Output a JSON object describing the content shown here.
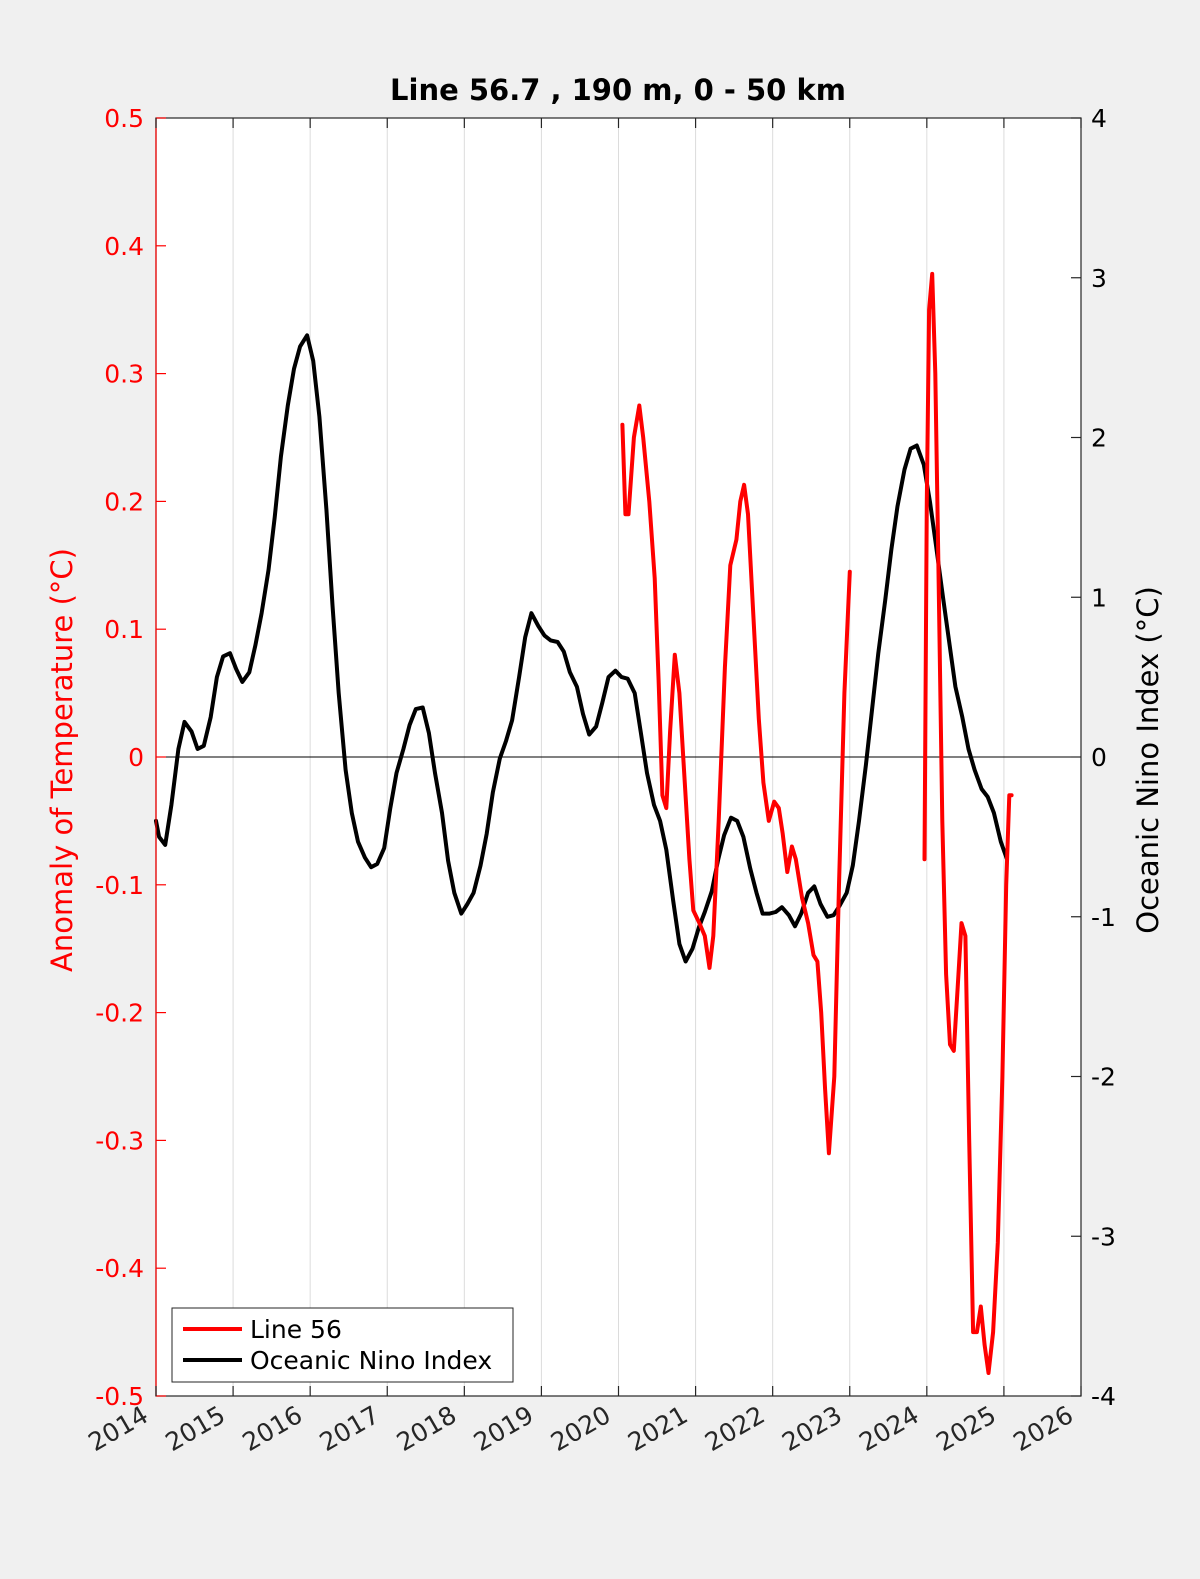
{
  "chart_data": {
    "type": "line",
    "title": "Line 56.7 , 190 m, 0 - 50 km",
    "xlim": [
      2014,
      2026
    ],
    "xticks": [
      "2014",
      "2015",
      "2016",
      "2017",
      "2018",
      "2019",
      "2020",
      "2021",
      "2022",
      "2023",
      "2024",
      "2025",
      "2026"
    ],
    "grid": "vertical",
    "legend_position": "bottom-left",
    "y_left": {
      "label": "Anomaly of Temperature (°C)",
      "color": "#ff0000",
      "ylim": [
        -0.5,
        0.5
      ],
      "ticks": [
        "0.5",
        "0.4",
        "0.3",
        "0.2",
        "0.1",
        "0",
        "-0.1",
        "-0.2",
        "-0.3",
        "-0.4",
        "-0.5"
      ]
    },
    "y_right": {
      "label": "Oceanic Nino Index (°C)",
      "color": "#000000",
      "ylim": [
        -4,
        4
      ],
      "ticks": [
        "4",
        "3",
        "2",
        "1",
        "0",
        "-1",
        "-2",
        "-3",
        "-4"
      ]
    },
    "zero_line": 0,
    "series": [
      {
        "name": "Line 56",
        "axis": "left",
        "color": "#ff0000",
        "segments": [
          [
            [
              2020.05,
              0.26
            ],
            [
              2020.09,
              0.19
            ],
            [
              2020.13,
              0.19
            ],
            [
              2020.2,
              0.25
            ],
            [
              2020.27,
              0.275
            ],
            [
              2020.32,
              0.25
            ],
            [
              2020.4,
              0.2
            ],
            [
              2020.47,
              0.14
            ],
            [
              2020.52,
              0.06
            ],
            [
              2020.57,
              -0.03
            ],
            [
              2020.62,
              -0.04
            ],
            [
              2020.67,
              0.02
            ],
            [
              2020.73,
              0.08
            ],
            [
              2020.79,
              0.05
            ],
            [
              2020.85,
              -0.01
            ],
            [
              2020.92,
              -0.08
            ],
            [
              2020.97,
              -0.12
            ],
            [
              2021.05,
              -0.13
            ],
            [
              2021.12,
              -0.14
            ],
            [
              2021.18,
              -0.165
            ],
            [
              2021.23,
              -0.14
            ],
            [
              2021.3,
              -0.05
            ],
            [
              2021.38,
              0.07
            ],
            [
              2021.45,
              0.15
            ],
            [
              2021.53,
              0.17
            ],
            [
              2021.58,
              0.2
            ],
            [
              2021.63,
              0.213
            ],
            [
              2021.68,
              0.19
            ],
            [
              2021.75,
              0.11
            ],
            [
              2021.82,
              0.03
            ],
            [
              2021.88,
              -0.02
            ],
            [
              2021.95,
              -0.05
            ],
            [
              2022.02,
              -0.035
            ],
            [
              2022.08,
              -0.04
            ],
            [
              2022.13,
              -0.06
            ],
            [
              2022.19,
              -0.09
            ],
            [
              2022.25,
              -0.07
            ],
            [
              2022.3,
              -0.08
            ],
            [
              2022.38,
              -0.11
            ],
            [
              2022.46,
              -0.13
            ],
            [
              2022.53,
              -0.155
            ],
            [
              2022.58,
              -0.16
            ],
            [
              2022.63,
              -0.2
            ],
            [
              2022.68,
              -0.26
            ],
            [
              2022.73,
              -0.31
            ],
            [
              2022.8,
              -0.25
            ],
            [
              2022.86,
              -0.1
            ],
            [
              2022.93,
              0.05
            ],
            [
              2023.0,
              0.145
            ]
          ],
          [
            [
              2023.97,
              -0.08
            ],
            [
              2024.0,
              0.2
            ],
            [
              2024.03,
              0.35
            ],
            [
              2024.07,
              0.378
            ],
            [
              2024.11,
              0.3
            ],
            [
              2024.15,
              0.15
            ],
            [
              2024.2,
              -0.05
            ],
            [
              2024.25,
              -0.17
            ],
            [
              2024.3,
              -0.225
            ],
            [
              2024.35,
              -0.23
            ],
            [
              2024.4,
              -0.18
            ],
            [
              2024.45,
              -0.13
            ],
            [
              2024.5,
              -0.14
            ],
            [
              2024.55,
              -0.3
            ],
            [
              2024.6,
              -0.45
            ],
            [
              2024.65,
              -0.45
            ],
            [
              2024.7,
              -0.43
            ],
            [
              2024.75,
              -0.46
            ],
            [
              2024.8,
              -0.482
            ],
            [
              2024.86,
              -0.45
            ],
            [
              2024.92,
              -0.38
            ],
            [
              2024.98,
              -0.25
            ],
            [
              2025.03,
              -0.1
            ],
            [
              2025.07,
              -0.03
            ],
            [
              2025.1,
              -0.03
            ]
          ]
        ]
      },
      {
        "name": "Oceanic Nino Index",
        "axis": "right",
        "color": "#000000",
        "segments": [
          [
            [
              2014.0,
              -0.4
            ],
            [
              2014.04,
              -0.5
            ],
            [
              2014.12,
              -0.55
            ],
            [
              2014.2,
              -0.3
            ],
            [
              2014.29,
              0.05
            ],
            [
              2014.37,
              0.22
            ],
            [
              2014.46,
              0.16
            ],
            [
              2014.54,
              0.05
            ],
            [
              2014.62,
              0.07
            ],
            [
              2014.71,
              0.25
            ],
            [
              2014.79,
              0.5
            ],
            [
              2014.87,
              0.63
            ],
            [
              2014.96,
              0.65
            ],
            [
              2015.04,
              0.55
            ],
            [
              2015.12,
              0.47
            ],
            [
              2015.21,
              0.53
            ],
            [
              2015.29,
              0.7
            ],
            [
              2015.37,
              0.9
            ],
            [
              2015.46,
              1.17
            ],
            [
              2015.54,
              1.5
            ],
            [
              2015.62,
              1.88
            ],
            [
              2015.71,
              2.2
            ],
            [
              2015.79,
              2.43
            ],
            [
              2015.87,
              2.57
            ],
            [
              2015.96,
              2.64
            ],
            [
              2016.04,
              2.48
            ],
            [
              2016.12,
              2.13
            ],
            [
              2016.21,
              1.55
            ],
            [
              2016.29,
              0.95
            ],
            [
              2016.37,
              0.4
            ],
            [
              2016.46,
              -0.08
            ],
            [
              2016.54,
              -0.35
            ],
            [
              2016.62,
              -0.53
            ],
            [
              2016.71,
              -0.63
            ],
            [
              2016.79,
              -0.69
            ],
            [
              2016.87,
              -0.67
            ],
            [
              2016.96,
              -0.57
            ],
            [
              2017.04,
              -0.32
            ],
            [
              2017.12,
              -0.1
            ],
            [
              2017.21,
              0.05
            ],
            [
              2017.29,
              0.2
            ],
            [
              2017.37,
              0.3
            ],
            [
              2017.46,
              0.31
            ],
            [
              2017.54,
              0.15
            ],
            [
              2017.62,
              -0.1
            ],
            [
              2017.71,
              -0.35
            ],
            [
              2017.79,
              -0.65
            ],
            [
              2017.87,
              -0.85
            ],
            [
              2017.96,
              -0.98
            ],
            [
              2018.04,
              -0.92
            ],
            [
              2018.12,
              -0.85
            ],
            [
              2018.21,
              -0.68
            ],
            [
              2018.29,
              -0.48
            ],
            [
              2018.37,
              -0.22
            ],
            [
              2018.46,
              -0.01
            ],
            [
              2018.54,
              0.1
            ],
            [
              2018.62,
              0.23
            ],
            [
              2018.71,
              0.5
            ],
            [
              2018.79,
              0.75
            ],
            [
              2018.87,
              0.9
            ],
            [
              2018.96,
              0.82
            ],
            [
              2019.04,
              0.76
            ],
            [
              2019.12,
              0.73
            ],
            [
              2019.21,
              0.72
            ],
            [
              2019.29,
              0.66
            ],
            [
              2019.37,
              0.53
            ],
            [
              2019.46,
              0.44
            ],
            [
              2019.54,
              0.27
            ],
            [
              2019.62,
              0.14
            ],
            [
              2019.71,
              0.19
            ],
            [
              2019.79,
              0.34
            ],
            [
              2019.87,
              0.5
            ],
            [
              2019.96,
              0.54
            ],
            [
              2020.04,
              0.5
            ],
            [
              2020.12,
              0.49
            ],
            [
              2020.21,
              0.4
            ],
            [
              2020.29,
              0.15
            ],
            [
              2020.37,
              -0.1
            ],
            [
              2020.46,
              -0.3
            ],
            [
              2020.54,
              -0.4
            ],
            [
              2020.62,
              -0.58
            ],
            [
              2020.71,
              -0.9
            ],
            [
              2020.79,
              -1.17
            ],
            [
              2020.87,
              -1.28
            ],
            [
              2020.96,
              -1.2
            ],
            [
              2021.04,
              -1.07
            ],
            [
              2021.12,
              -0.97
            ],
            [
              2021.21,
              -0.84
            ],
            [
              2021.29,
              -0.65
            ],
            [
              2021.37,
              -0.49
            ],
            [
              2021.46,
              -0.38
            ],
            [
              2021.54,
              -0.4
            ],
            [
              2021.62,
              -0.5
            ],
            [
              2021.71,
              -0.7
            ],
            [
              2021.79,
              -0.85
            ],
            [
              2021.87,
              -0.98
            ],
            [
              2021.96,
              -0.98
            ],
            [
              2022.04,
              -0.97
            ],
            [
              2022.12,
              -0.94
            ],
            [
              2022.21,
              -0.99
            ],
            [
              2022.29,
              -1.06
            ],
            [
              2022.37,
              -0.98
            ],
            [
              2022.46,
              -0.85
            ],
            [
              2022.54,
              -0.81
            ],
            [
              2022.62,
              -0.92
            ],
            [
              2022.71,
              -1.0
            ],
            [
              2022.79,
              -0.99
            ],
            [
              2022.87,
              -0.93
            ],
            [
              2022.96,
              -0.85
            ],
            [
              2023.04,
              -0.68
            ],
            [
              2023.12,
              -0.4
            ],
            [
              2023.21,
              -0.05
            ],
            [
              2023.29,
              0.3
            ],
            [
              2023.37,
              0.65
            ],
            [
              2023.46,
              0.98
            ],
            [
              2023.54,
              1.3
            ],
            [
              2023.62,
              1.57
            ],
            [
              2023.71,
              1.8
            ],
            [
              2023.79,
              1.93
            ],
            [
              2023.87,
              1.95
            ],
            [
              2023.96,
              1.83
            ],
            [
              2024.04,
              1.6
            ],
            [
              2024.12,
              1.32
            ],
            [
              2024.21,
              1.0
            ],
            [
              2024.29,
              0.72
            ],
            [
              2024.37,
              0.44
            ],
            [
              2024.46,
              0.25
            ],
            [
              2024.54,
              0.05
            ],
            [
              2024.62,
              -0.08
            ],
            [
              2024.71,
              -0.2
            ],
            [
              2024.79,
              -0.25
            ],
            [
              2024.87,
              -0.35
            ],
            [
              2024.96,
              -0.53
            ],
            [
              2025.04,
              -0.64
            ]
          ]
        ]
      }
    ]
  }
}
